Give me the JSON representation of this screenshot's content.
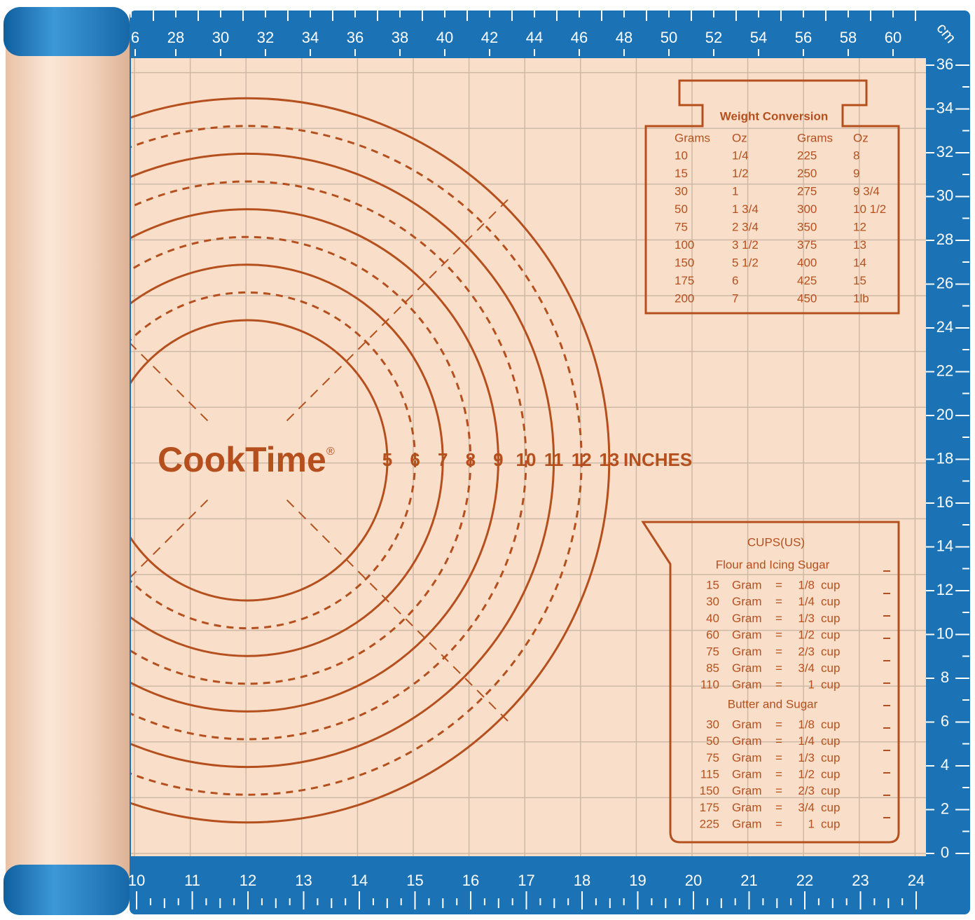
{
  "top_ruler": {
    "unit": "cm",
    "labels": [
      "6",
      "28",
      "30",
      "32",
      "34",
      "36",
      "38",
      "40",
      "42",
      "44",
      "46",
      "48",
      "50",
      "52",
      "54",
      "56",
      "58",
      "60"
    ]
  },
  "right_ruler": {
    "labels": [
      "36",
      "34",
      "32",
      "30",
      "28",
      "26",
      "24",
      "22",
      "20",
      "18",
      "16",
      "14",
      "12",
      "10",
      "8",
      "6",
      "4",
      "2",
      "0"
    ]
  },
  "bottom_ruler": {
    "labels": [
      "10",
      "11",
      "12",
      "13",
      "14",
      "15",
      "16",
      "17",
      "18",
      "19",
      "20",
      "21",
      "22",
      "23",
      "24"
    ]
  },
  "logo": {
    "name": "CookTime",
    "mark": "®"
  },
  "circle_scale": {
    "labels": [
      "5",
      "6",
      "7",
      "8",
      "9",
      "10",
      "11",
      "12",
      "13"
    ],
    "unit": "INCHES"
  },
  "weight_conversion": {
    "title": "Weight Conversion",
    "headers": [
      "Grams",
      "Oz",
      "Grams",
      "Oz"
    ],
    "rows": [
      [
        "10",
        "1/4",
        "225",
        "8"
      ],
      [
        "15",
        "1/2",
        "250",
        "9"
      ],
      [
        "30",
        "1",
        "275",
        "9 3/4"
      ],
      [
        "50",
        "1 3/4",
        "300",
        "10 1/2"
      ],
      [
        "75",
        "2 3/4",
        "350",
        "12"
      ],
      [
        "100",
        "3 1/2",
        "375",
        "13"
      ],
      [
        "150",
        "5 1/2",
        "400",
        "14"
      ],
      [
        "175",
        "6",
        "425",
        "15"
      ],
      [
        "200",
        "7",
        "450",
        "1lb"
      ]
    ]
  },
  "cups": {
    "title": "CUPS(US)",
    "sections": [
      {
        "title": "Flour and Icing Sugar",
        "rows": [
          [
            "15",
            "Gram",
            "=",
            "1/8",
            "cup"
          ],
          [
            "30",
            "Gram",
            "=",
            "1/4",
            "cup"
          ],
          [
            "40",
            "Gram",
            "=",
            "1/3",
            "cup"
          ],
          [
            "60",
            "Gram",
            "=",
            "1/2",
            "cup"
          ],
          [
            "75",
            "Gram",
            "=",
            "2/3",
            "cup"
          ],
          [
            "85",
            "Gram",
            "=",
            "3/4",
            "cup"
          ],
          [
            "110",
            "Gram",
            "=",
            "1",
            "cup"
          ]
        ]
      },
      {
        "title": "Butter and Sugar",
        "rows": [
          [
            "30",
            "Gram",
            "=",
            "1/8",
            "cup"
          ],
          [
            "50",
            "Gram",
            "=",
            "1/4",
            "cup"
          ],
          [
            "75",
            "Gram",
            "=",
            "1/3",
            "cup"
          ],
          [
            "115",
            "Gram",
            "=",
            "1/2",
            "cup"
          ],
          [
            "150",
            "Gram",
            "=",
            "2/3",
            "cup"
          ],
          [
            "175",
            "Gram",
            "=",
            "3/4",
            "cup"
          ],
          [
            "225",
            "Gram",
            "=",
            "1",
            "cup"
          ]
        ]
      }
    ]
  }
}
